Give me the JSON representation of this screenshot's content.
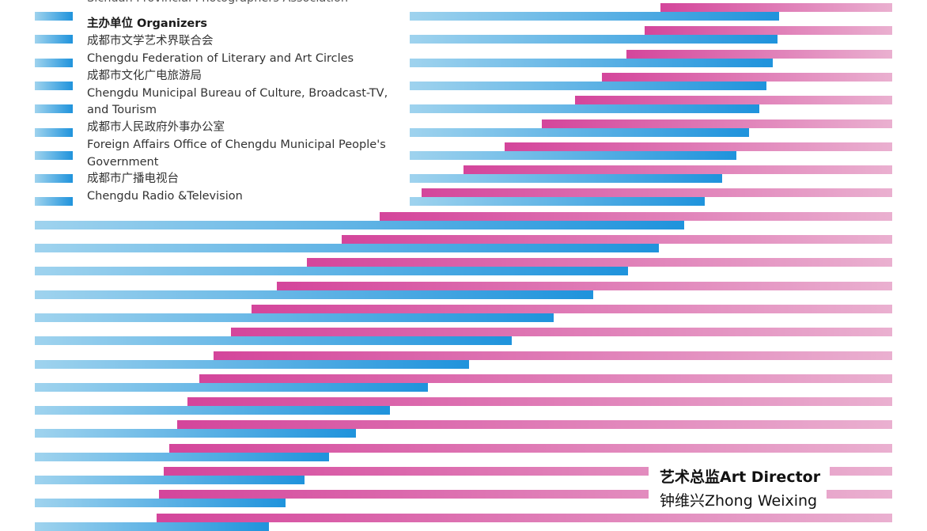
{
  "header_partial": "Sichuan Provincial Photographers Association",
  "organizers": {
    "title": "主办单位 Organizers",
    "lines": [
      "成都市文学艺术界联合会",
      "Chengdu Federation of Literary and Art Circles",
      "成都市文化广电旅游局",
      "Chengdu Municipal Bureau of Culture, Broadcast-TV,",
      "and Tourism",
      "成都市人民政府外事办公室",
      "Foreign Affairs Office of Chengdu Municipal People's",
      "Government",
      "成都市广播电视台",
      "Chengdu Radio &Television"
    ]
  },
  "art_director": {
    "title": "艺术总监Art Director",
    "name": "钟维兴Zhong Weixing"
  },
  "colors": {
    "blue_light": "#9fd3ee",
    "blue_dark": "#1f93dc",
    "pink_dark": "#d4459b",
    "pink_light": "#eab0d0"
  }
}
